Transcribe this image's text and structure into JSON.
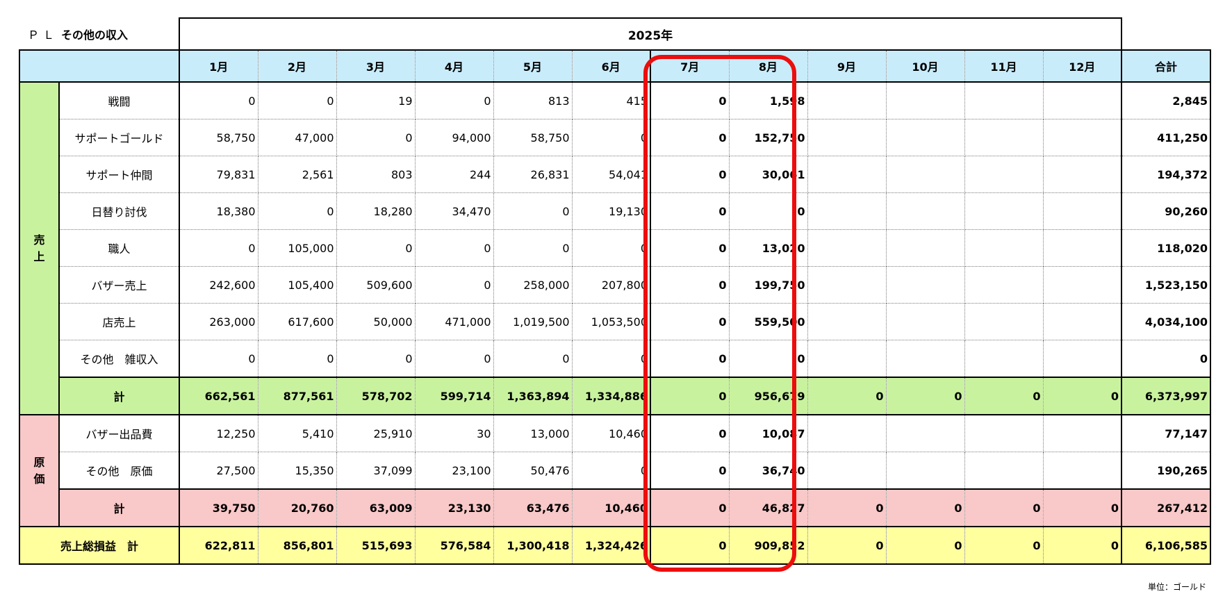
{
  "title_prefix": "ＰＬ",
  "title": "その他の収入",
  "year": "2025年",
  "months": [
    "1月",
    "2月",
    "3月",
    "4月",
    "5月",
    "6月",
    "7月",
    "8月",
    "9月",
    "10月",
    "11月",
    "12月"
  ],
  "total_header": "合計",
  "sales_group": [
    "売",
    "上"
  ],
  "cost_group": [
    "原",
    "価"
  ],
  "sales_rows": [
    {
      "label": "戦闘",
      "values": [
        "0",
        "0",
        "19",
        "0",
        "813",
        "415",
        "0",
        "1,598",
        "",
        "",
        "",
        ""
      ],
      "total": "2,845"
    },
    {
      "label": "サポートゴールド",
      "values": [
        "58,750",
        "47,000",
        "0",
        "94,000",
        "58,750",
        "0",
        "0",
        "152,750",
        "",
        "",
        "",
        ""
      ],
      "total": "411,250"
    },
    {
      "label": "サポート仲間",
      "values": [
        "79,831",
        "2,561",
        "803",
        "244",
        "26,831",
        "54,041",
        "0",
        "30,061",
        "",
        "",
        "",
        ""
      ],
      "total": "194,372"
    },
    {
      "label": "日替り討伐",
      "values": [
        "18,380",
        "0",
        "18,280",
        "34,470",
        "0",
        "19,130",
        "0",
        "0",
        "",
        "",
        "",
        ""
      ],
      "total": "90,260"
    },
    {
      "label": "職人",
      "values": [
        "0",
        "105,000",
        "0",
        "0",
        "0",
        "0",
        "0",
        "13,020",
        "",
        "",
        "",
        ""
      ],
      "total": "118,020"
    },
    {
      "label": "バザー売上",
      "values": [
        "242,600",
        "105,400",
        "509,600",
        "0",
        "258,000",
        "207,800",
        "0",
        "199,750",
        "",
        "",
        "",
        ""
      ],
      "total": "1,523,150"
    },
    {
      "label": "店売上",
      "values": [
        "263,000",
        "617,600",
        "50,000",
        "471,000",
        "1,019,500",
        "1,053,500",
        "0",
        "559,500",
        "",
        "",
        "",
        ""
      ],
      "total": "4,034,100"
    },
    {
      "label": "その他　雑収入",
      "values": [
        "0",
        "0",
        "0",
        "0",
        "0",
        "0",
        "0",
        "0",
        "",
        "",
        "",
        ""
      ],
      "total": "0"
    }
  ],
  "sales_total": {
    "label": "計",
    "values": [
      "662,561",
      "877,561",
      "578,702",
      "599,714",
      "1,363,894",
      "1,334,886",
      "0",
      "956,679",
      "0",
      "0",
      "0",
      "0"
    ],
    "total": "6,373,997"
  },
  "cost_rows": [
    {
      "label": "バザー出品費",
      "values": [
        "12,250",
        "5,410",
        "25,910",
        "30",
        "13,000",
        "10,460",
        "0",
        "10,087",
        "",
        "",
        "",
        ""
      ],
      "total": "77,147"
    },
    {
      "label": "その他　原価",
      "values": [
        "27,500",
        "15,350",
        "37,099",
        "23,100",
        "50,476",
        "0",
        "0",
        "36,740",
        "",
        "",
        "",
        ""
      ],
      "total": "190,265"
    }
  ],
  "cost_total": {
    "label": "計",
    "values": [
      "39,750",
      "20,760",
      "63,009",
      "23,130",
      "63,476",
      "10,460",
      "0",
      "46,827",
      "0",
      "0",
      "0",
      "0"
    ],
    "total": "267,412"
  },
  "gross_profit": {
    "label": "売上総損益　計",
    "values": [
      "622,811",
      "856,801",
      "515,693",
      "576,584",
      "1,300,418",
      "1,324,426",
      "0",
      "909,852",
      "0",
      "0",
      "0",
      "0"
    ],
    "total": "6,106,585"
  },
  "unit_note": "単位：ゴールド",
  "colors": {
    "sales": "#c9f29f",
    "cost": "#f9c8c8",
    "gross_profit": "#ffff9e",
    "header": "#c9ecfb",
    "highlight": "#ec0d0d"
  }
}
